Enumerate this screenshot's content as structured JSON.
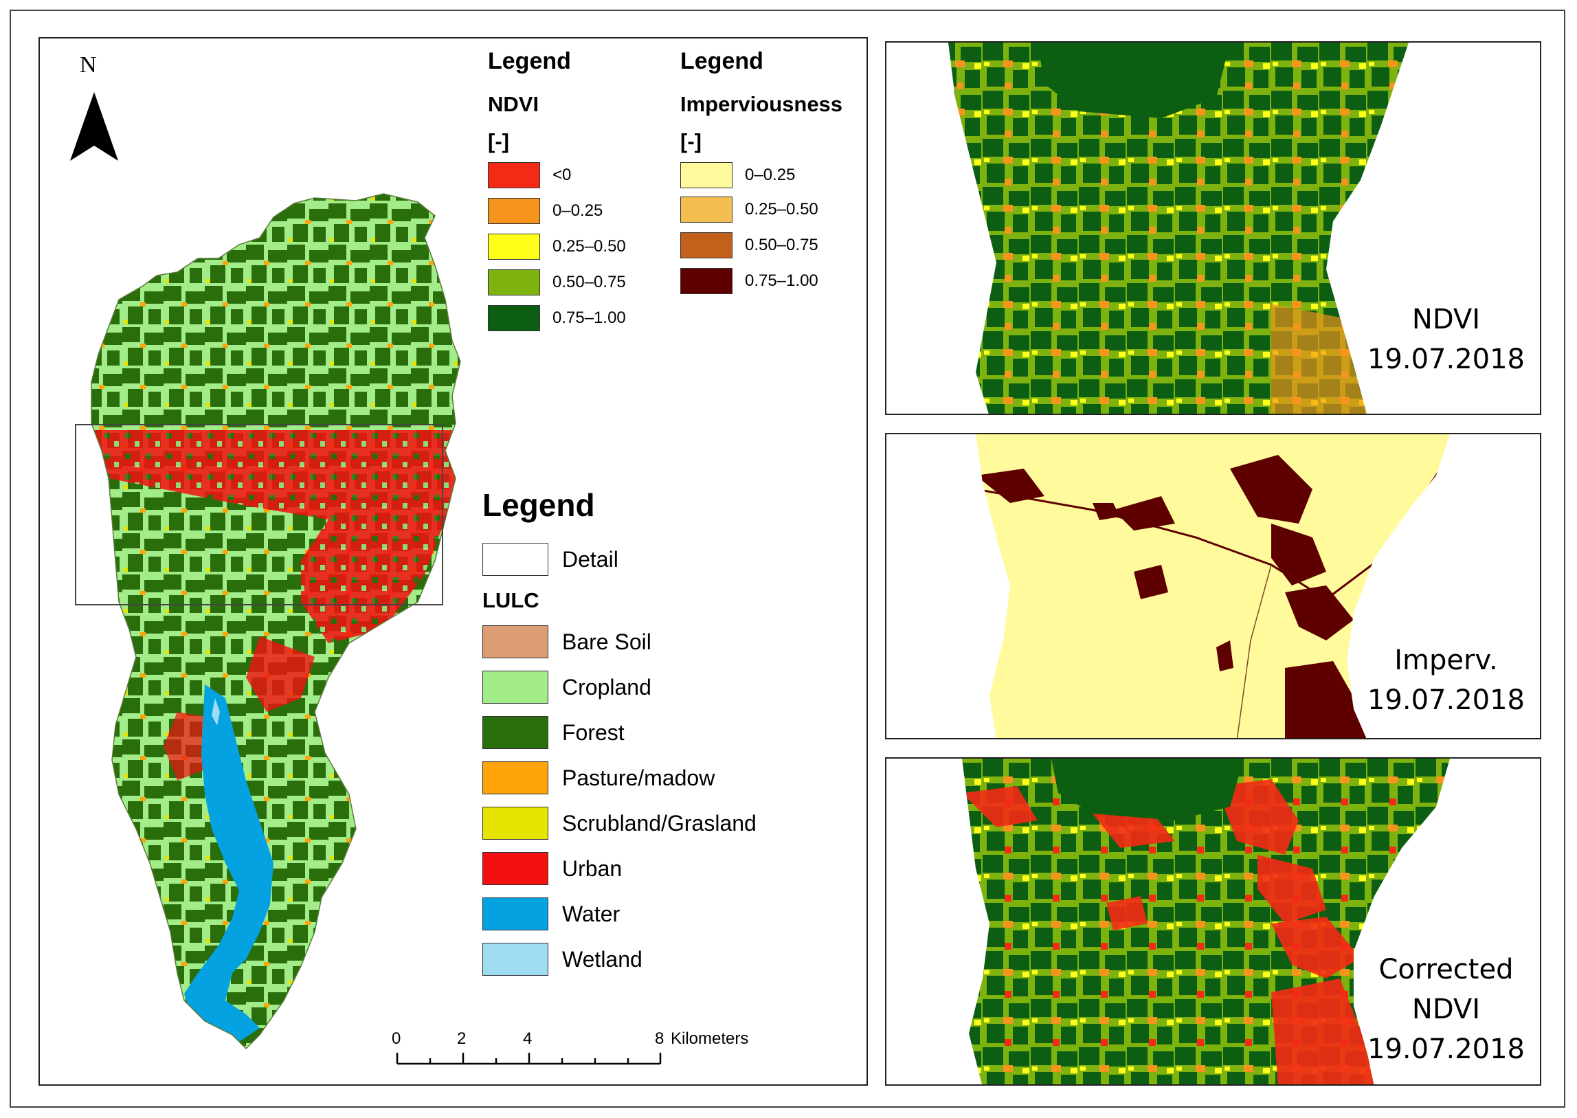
{
  "north_arrow": {
    "letter": "N"
  },
  "ndvi_legend": {
    "title": "Legend",
    "variable": "NDVI",
    "unit": "[-]",
    "items": [
      {
        "label": "<0",
        "color": "#f52a16"
      },
      {
        "label": "0–0.25",
        "color": "#f7941d"
      },
      {
        "label": "0.25–0.50",
        "color": "#ffff19"
      },
      {
        "label": "0.50–0.75",
        "color": "#7db20f"
      },
      {
        "label": "0.75–1.00",
        "color": "#0c5e12"
      }
    ]
  },
  "imperv_legend": {
    "title": "Legend",
    "variable": "Imperviousness",
    "unit": "[-]",
    "items": [
      {
        "label": "0–0.25",
        "color": "#fffa9c"
      },
      {
        "label": "0.25–0.50",
        "color": "#f5bf50"
      },
      {
        "label": "0.50–0.75",
        "color": "#c2601c"
      },
      {
        "label": "0.75–1.00",
        "color": "#5e0000"
      }
    ]
  },
  "lulc_legend": {
    "title": "Legend",
    "detail_label": "Detail",
    "section": "LULC",
    "items": [
      {
        "label": "Bare Soil",
        "color": "#dc9c74"
      },
      {
        "label": "Cropland",
        "color": "#a2ec8a"
      },
      {
        "label": "Forest",
        "color": "#2a6e0c"
      },
      {
        "label": "Pasture/madow",
        "color": "#fca40a"
      },
      {
        "label": "Scrubland/Grasland",
        "color": "#e6e400"
      },
      {
        "label": "Urban",
        "color": "#f21010"
      },
      {
        "label": "Water",
        "color": "#04a2e0"
      },
      {
        "label": "Wetland",
        "color": "#9edcf2"
      }
    ]
  },
  "scale_bar": {
    "ticks": [
      "0",
      "2",
      "4",
      "8"
    ],
    "unit": "Kilometers"
  },
  "panels": [
    {
      "lines": [
        "NDVI",
        "19.07.2018"
      ]
    },
    {
      "lines": [
        "Imperv.",
        "19.07.2018"
      ]
    },
    {
      "lines": [
        "Corrected",
        "NDVI",
        "19.07.2018"
      ]
    }
  ]
}
